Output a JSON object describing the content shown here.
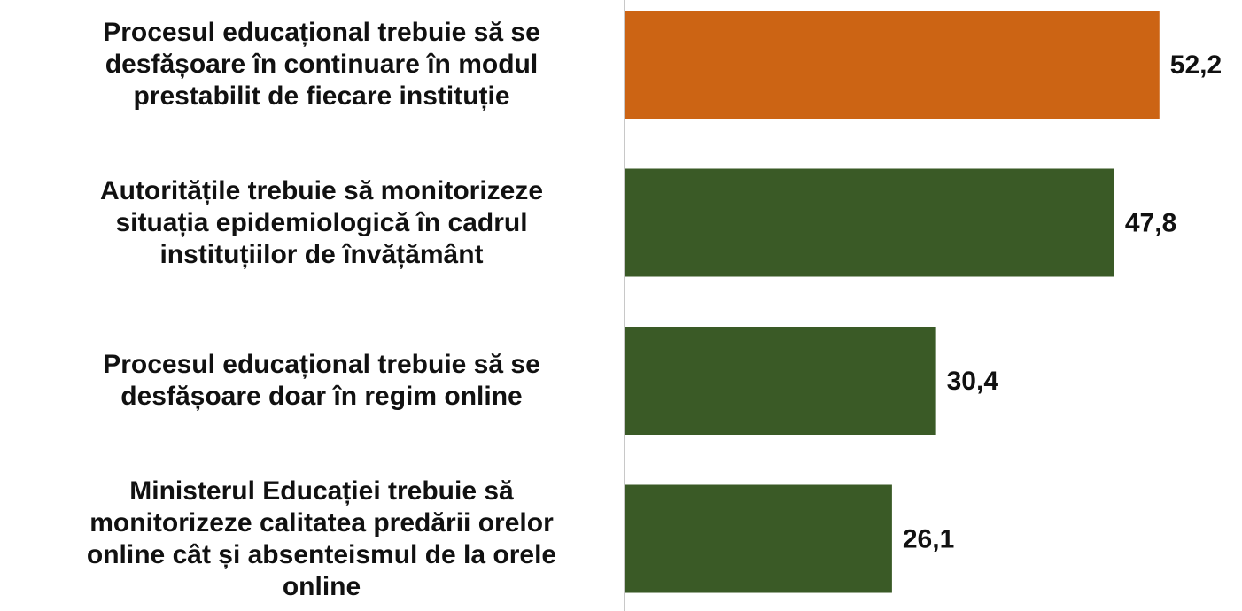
{
  "chart_data": {
    "type": "barh",
    "categories": [
      "Procesul educațional trebuie să se\ndesfășoare în continuare în modul\nprestabilit de fiecare instituție",
      "Autoritățile trebuie să monitorizeze\nsituația epidemiologică în cadrul\ninstituțiilor de învățământ",
      "Procesul educațional trebuie să se\ndesfășoare doar în regim online",
      "Ministerul Educației trebuie să\nmonitorizeze calitatea predării orelor\nonline cât și absenteismul de la orele\nonline"
    ],
    "values": [
      52.2,
      47.8,
      30.4,
      26.1
    ],
    "value_labels": [
      "52,2",
      "47,8",
      "30,4",
      "26,1"
    ],
    "colors": [
      "#cc6414",
      "#3a5a26",
      "#3a5a26",
      "#3a5a26"
    ],
    "xlim": [
      0,
      60
    ]
  }
}
